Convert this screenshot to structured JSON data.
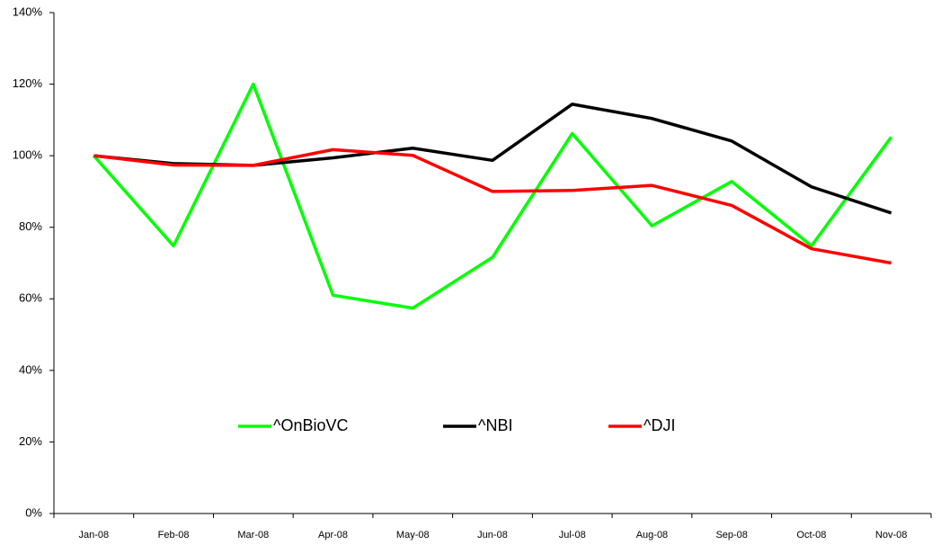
{
  "chart_data": {
    "type": "line",
    "categories": [
      "Jan-08",
      "Feb-08",
      "Mar-08",
      "Apr-08",
      "May-08",
      "Jun-08",
      "Jul-08",
      "Aug-08",
      "Sep-08",
      "Oct-08",
      "Nov-08"
    ],
    "series": [
      {
        "name": "^OnBioVC",
        "color": "#00ff00",
        "values": [
          100,
          74.8,
          120,
          61,
          57.4,
          71.6,
          106.2,
          80.4,
          92.8,
          74.8,
          105.2
        ]
      },
      {
        "name": "^NBI",
        "color": "#000000",
        "values": [
          100,
          97.8,
          97.3,
          99.4,
          102.1,
          98.7,
          114.4,
          110.4,
          104.1,
          91.3,
          84
        ]
      },
      {
        "name": "^DJI",
        "color": "#ff0000",
        "values": [
          100,
          97.4,
          97.3,
          101.7,
          100.1,
          90,
          90.3,
          91.7,
          86.1,
          74,
          70
        ]
      }
    ],
    "ylim": [
      0,
      140
    ],
    "yticks": [
      {
        "value": 0,
        "label": "0%"
      },
      {
        "value": 20,
        "label": "20%"
      },
      {
        "value": 40,
        "label": "40%"
      },
      {
        "value": 60,
        "label": "60%"
      },
      {
        "value": 80,
        "label": "80%"
      },
      {
        "value": 100,
        "label": "100%"
      },
      {
        "value": 120,
        "label": "120%"
      },
      {
        "value": 140,
        "label": "140%"
      }
    ],
    "grid": false,
    "legend": "lower center"
  }
}
